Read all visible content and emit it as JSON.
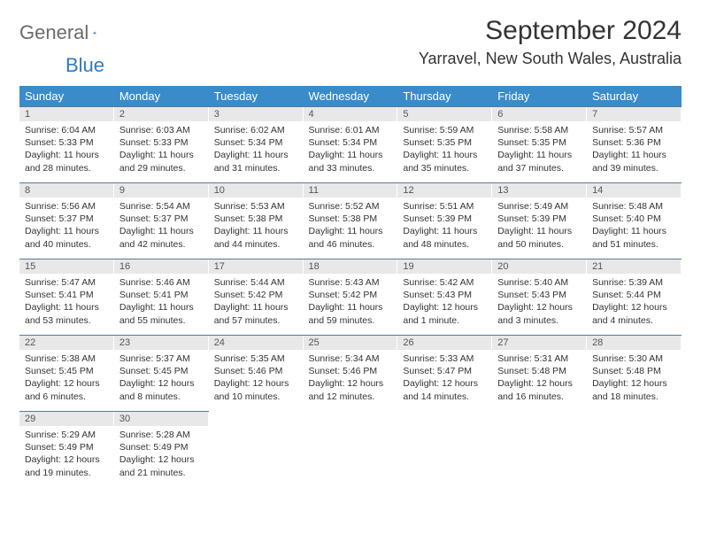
{
  "brand": {
    "word1": "General",
    "word2": "Blue"
  },
  "title": "September 2024",
  "location": "Yarravel, New South Wales, Australia",
  "header_bg": "#3a8bc9",
  "daynum_bg": "#e8e8e8",
  "border_color": "#5a7a94",
  "weekdays": [
    "Sunday",
    "Monday",
    "Tuesday",
    "Wednesday",
    "Thursday",
    "Friday",
    "Saturday"
  ],
  "days": [
    {
      "n": "1",
      "sunrise": "6:04 AM",
      "sunset": "5:33 PM",
      "daylight": "11 hours and 28 minutes."
    },
    {
      "n": "2",
      "sunrise": "6:03 AM",
      "sunset": "5:33 PM",
      "daylight": "11 hours and 29 minutes."
    },
    {
      "n": "3",
      "sunrise": "6:02 AM",
      "sunset": "5:34 PM",
      "daylight": "11 hours and 31 minutes."
    },
    {
      "n": "4",
      "sunrise": "6:01 AM",
      "sunset": "5:34 PM",
      "daylight": "11 hours and 33 minutes."
    },
    {
      "n": "5",
      "sunrise": "5:59 AM",
      "sunset": "5:35 PM",
      "daylight": "11 hours and 35 minutes."
    },
    {
      "n": "6",
      "sunrise": "5:58 AM",
      "sunset": "5:35 PM",
      "daylight": "11 hours and 37 minutes."
    },
    {
      "n": "7",
      "sunrise": "5:57 AM",
      "sunset": "5:36 PM",
      "daylight": "11 hours and 39 minutes."
    },
    {
      "n": "8",
      "sunrise": "5:56 AM",
      "sunset": "5:37 PM",
      "daylight": "11 hours and 40 minutes."
    },
    {
      "n": "9",
      "sunrise": "5:54 AM",
      "sunset": "5:37 PM",
      "daylight": "11 hours and 42 minutes."
    },
    {
      "n": "10",
      "sunrise": "5:53 AM",
      "sunset": "5:38 PM",
      "daylight": "11 hours and 44 minutes."
    },
    {
      "n": "11",
      "sunrise": "5:52 AM",
      "sunset": "5:38 PM",
      "daylight": "11 hours and 46 minutes."
    },
    {
      "n": "12",
      "sunrise": "5:51 AM",
      "sunset": "5:39 PM",
      "daylight": "11 hours and 48 minutes."
    },
    {
      "n": "13",
      "sunrise": "5:49 AM",
      "sunset": "5:39 PM",
      "daylight": "11 hours and 50 minutes."
    },
    {
      "n": "14",
      "sunrise": "5:48 AM",
      "sunset": "5:40 PM",
      "daylight": "11 hours and 51 minutes."
    },
    {
      "n": "15",
      "sunrise": "5:47 AM",
      "sunset": "5:41 PM",
      "daylight": "11 hours and 53 minutes."
    },
    {
      "n": "16",
      "sunrise": "5:46 AM",
      "sunset": "5:41 PM",
      "daylight": "11 hours and 55 minutes."
    },
    {
      "n": "17",
      "sunrise": "5:44 AM",
      "sunset": "5:42 PM",
      "daylight": "11 hours and 57 minutes."
    },
    {
      "n": "18",
      "sunrise": "5:43 AM",
      "sunset": "5:42 PM",
      "daylight": "11 hours and 59 minutes."
    },
    {
      "n": "19",
      "sunrise": "5:42 AM",
      "sunset": "5:43 PM",
      "daylight": "12 hours and 1 minute."
    },
    {
      "n": "20",
      "sunrise": "5:40 AM",
      "sunset": "5:43 PM",
      "daylight": "12 hours and 3 minutes."
    },
    {
      "n": "21",
      "sunrise": "5:39 AM",
      "sunset": "5:44 PM",
      "daylight": "12 hours and 4 minutes."
    },
    {
      "n": "22",
      "sunrise": "5:38 AM",
      "sunset": "5:45 PM",
      "daylight": "12 hours and 6 minutes."
    },
    {
      "n": "23",
      "sunrise": "5:37 AM",
      "sunset": "5:45 PM",
      "daylight": "12 hours and 8 minutes."
    },
    {
      "n": "24",
      "sunrise": "5:35 AM",
      "sunset": "5:46 PM",
      "daylight": "12 hours and 10 minutes."
    },
    {
      "n": "25",
      "sunrise": "5:34 AM",
      "sunset": "5:46 PM",
      "daylight": "12 hours and 12 minutes."
    },
    {
      "n": "26",
      "sunrise": "5:33 AM",
      "sunset": "5:47 PM",
      "daylight": "12 hours and 14 minutes."
    },
    {
      "n": "27",
      "sunrise": "5:31 AM",
      "sunset": "5:48 PM",
      "daylight": "12 hours and 16 minutes."
    },
    {
      "n": "28",
      "sunrise": "5:30 AM",
      "sunset": "5:48 PM",
      "daylight": "12 hours and 18 minutes."
    },
    {
      "n": "29",
      "sunrise": "5:29 AM",
      "sunset": "5:49 PM",
      "daylight": "12 hours and 19 minutes."
    },
    {
      "n": "30",
      "sunrise": "5:28 AM",
      "sunset": "5:49 PM",
      "daylight": "12 hours and 21 minutes."
    }
  ],
  "labels": {
    "sunrise": "Sunrise:",
    "sunset": "Sunset:",
    "daylight": "Daylight:"
  }
}
